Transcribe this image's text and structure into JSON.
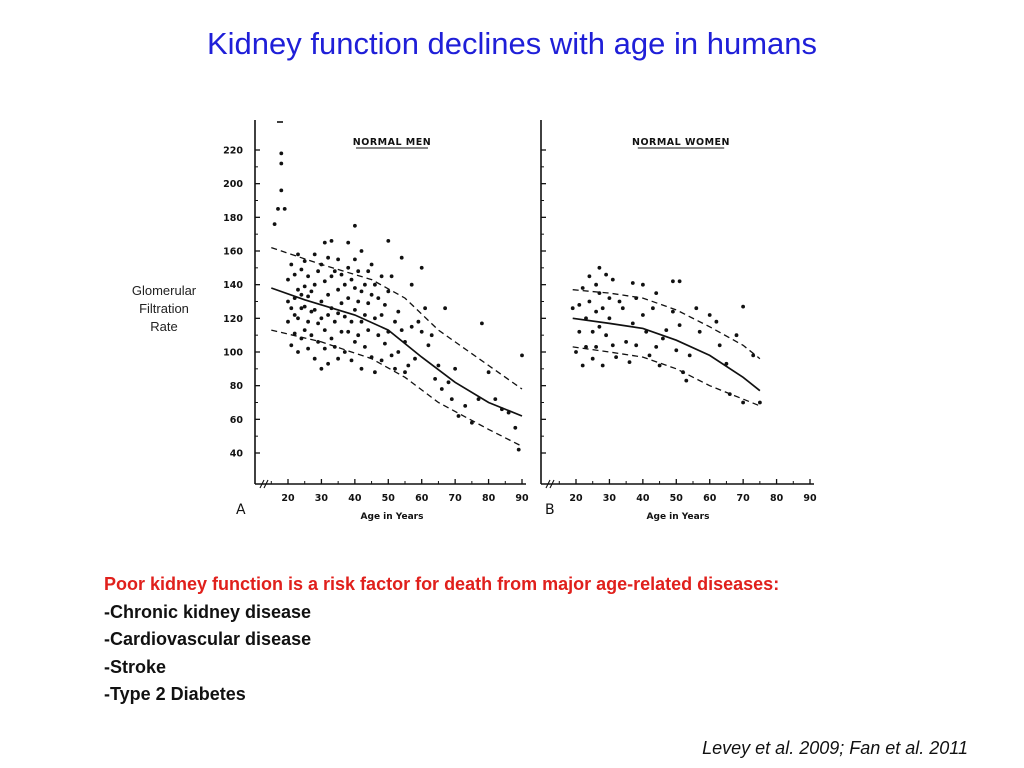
{
  "slide": {
    "title": "Kidney function declines with age in humans",
    "ylabel_lines": [
      "Glomerular",
      "Filtration",
      "Rate"
    ],
    "bullets": {
      "headline": "Poor kidney function is a risk factor for death from major age-related diseases:",
      "items": [
        "-Chronic kidney disease",
        "-Cardiovascular disease",
        "-Stroke",
        "-Type 2 Diabetes"
      ]
    },
    "citation": "Levey et al. 2009; Fan et al. 2011"
  },
  "chart_data": [
    {
      "type": "scatter",
      "panel_label": "A",
      "title": "NORMAL MEN",
      "xlabel": "Age in Years",
      "ylabel": "",
      "xlim": [
        15,
        90
      ],
      "ylim": [
        40,
        225
      ],
      "x_ticks": [
        20,
        30,
        40,
        50,
        60,
        70,
        80,
        90
      ],
      "y_ticks": [
        40,
        60,
        80,
        100,
        120,
        140,
        160,
        180,
        200,
        220
      ],
      "series": [
        {
          "kind": "points",
          "points": [
            [
              16,
              176
            ],
            [
              17,
              185
            ],
            [
              18,
              196
            ],
            [
              18,
              212
            ],
            [
              18,
              218
            ],
            [
              19,
              185
            ],
            [
              20,
              143
            ],
            [
              20,
              130
            ],
            [
              20,
              118
            ],
            [
              21,
              152
            ],
            [
              21,
              126
            ],
            [
              21,
              104
            ],
            [
              22,
              146
            ],
            [
              22,
              132
            ],
            [
              22,
              122
            ],
            [
              22,
              111
            ],
            [
              23,
              158
            ],
            [
              23,
              137
            ],
            [
              23,
              120
            ],
            [
              23,
              100
            ],
            [
              24,
              149
            ],
            [
              24,
              134
            ],
            [
              24,
              126
            ],
            [
              24,
              108
            ],
            [
              25,
              154
            ],
            [
              25,
              139
            ],
            [
              25,
              127
            ],
            [
              25,
              113
            ],
            [
              26,
              145
            ],
            [
              26,
              133
            ],
            [
              26,
              118
            ],
            [
              26,
              102
            ],
            [
              27,
              136
            ],
            [
              27,
              124
            ],
            [
              27,
              110
            ],
            [
              28,
              158
            ],
            [
              28,
              140
            ],
            [
              28,
              125
            ],
            [
              28,
              96
            ],
            [
              29,
              148
            ],
            [
              29,
              117
            ],
            [
              29,
              106
            ],
            [
              30,
              152
            ],
            [
              30,
              130
            ],
            [
              30,
              120
            ],
            [
              30,
              90
            ],
            [
              31,
              165
            ],
            [
              31,
              142
            ],
            [
              31,
              113
            ],
            [
              31,
              102
            ],
            [
              32,
              156
            ],
            [
              32,
              134
            ],
            [
              32,
              122
            ],
            [
              32,
              93
            ],
            [
              33,
              166
            ],
            [
              33,
              145
            ],
            [
              33,
              126
            ],
            [
              33,
              108
            ],
            [
              34,
              148
            ],
            [
              34,
              118
            ],
            [
              34,
              103
            ],
            [
              35,
              155
            ],
            [
              35,
              137
            ],
            [
              35,
              123
            ],
            [
              35,
              96
            ],
            [
              36,
              146
            ],
            [
              36,
              129
            ],
            [
              36,
              112
            ],
            [
              37,
              140
            ],
            [
              37,
              121
            ],
            [
              37,
              100
            ],
            [
              38,
              165
            ],
            [
              38,
              150
            ],
            [
              38,
              132
            ],
            [
              38,
              112
            ],
            [
              39,
              143
            ],
            [
              39,
              118
            ],
            [
              39,
              95
            ],
            [
              40,
              175
            ],
            [
              40,
              155
            ],
            [
              40,
              138
            ],
            [
              40,
              125
            ],
            [
              40,
              106
            ],
            [
              41,
              148
            ],
            [
              41,
              130
            ],
            [
              41,
              110
            ],
            [
              42,
              160
            ],
            [
              42,
              136
            ],
            [
              42,
              118
            ],
            [
              42,
              90
            ],
            [
              43,
              140
            ],
            [
              43,
              122
            ],
            [
              43,
              103
            ],
            [
              44,
              148
            ],
            [
              44,
              129
            ],
            [
              44,
              113
            ],
            [
              45,
              152
            ],
            [
              45,
              134
            ],
            [
              45,
              97
            ],
            [
              46,
              140
            ],
            [
              46,
              120
            ],
            [
              46,
              88
            ],
            [
              47,
              132
            ],
            [
              47,
              110
            ],
            [
              48,
              145
            ],
            [
              48,
              122
            ],
            [
              48,
              95
            ],
            [
              49,
              128
            ],
            [
              49,
              105
            ],
            [
              50,
              166
            ],
            [
              50,
              136
            ],
            [
              50,
              112
            ],
            [
              51,
              145
            ],
            [
              51,
              98
            ],
            [
              52,
              118
            ],
            [
              52,
              90
            ],
            [
              53,
              124
            ],
            [
              53,
              100
            ],
            [
              54,
              156
            ],
            [
              54,
              113
            ],
            [
              55,
              106
            ],
            [
              55,
              88
            ],
            [
              56,
              92
            ],
            [
              57,
              140
            ],
            [
              57,
              115
            ],
            [
              58,
              96
            ],
            [
              59,
              118
            ],
            [
              60,
              150
            ],
            [
              60,
              112
            ],
            [
              61,
              126
            ],
            [
              62,
              104
            ],
            [
              63,
              110
            ],
            [
              64,
              84
            ],
            [
              65,
              92
            ],
            [
              66,
              78
            ],
            [
              67,
              126
            ],
            [
              68,
              82
            ],
            [
              69,
              72
            ],
            [
              70,
              90
            ],
            [
              71,
              62
            ],
            [
              73,
              68
            ],
            [
              75,
              58
            ],
            [
              77,
              72
            ],
            [
              78,
              117
            ],
            [
              80,
              88
            ],
            [
              82,
              72
            ],
            [
              84,
              66
            ],
            [
              86,
              64
            ],
            [
              88,
              55
            ],
            [
              89,
              42
            ],
            [
              90,
              98
            ]
          ]
        },
        {
          "kind": "solid",
          "name": "",
          "points": [
            [
              15,
              138
            ],
            [
              25,
              131
            ],
            [
              40,
              122
            ],
            [
              50,
              113
            ],
            [
              60,
              97
            ],
            [
              70,
              82
            ],
            [
              80,
              70
            ],
            [
              90,
              62
            ]
          ]
        },
        {
          "kind": "dashed",
          "name": "",
          "points": [
            [
              15,
              162
            ],
            [
              30,
              152
            ],
            [
              45,
              143
            ],
            [
              55,
              132
            ],
            [
              65,
              113
            ],
            [
              80,
              92
            ],
            [
              90,
              78
            ]
          ]
        },
        {
          "kind": "dashed",
          "name": "",
          "points": [
            [
              15,
              113
            ],
            [
              30,
              106
            ],
            [
              45,
              96
            ],
            [
              55,
              85
            ],
            [
              65,
              70
            ],
            [
              80,
              54
            ],
            [
              90,
              44
            ]
          ]
        }
      ]
    },
    {
      "type": "scatter",
      "panel_label": "B",
      "title": "NORMAL WOMEN",
      "xlabel": "Age in Years",
      "ylabel": "",
      "xlim": [
        15,
        90
      ],
      "ylim": [
        40,
        225
      ],
      "x_ticks": [
        20,
        30,
        40,
        50,
        60,
        70,
        80,
        90
      ],
      "y_ticks": [
        40,
        60,
        80,
        100,
        120,
        140,
        160,
        180,
        200,
        220
      ],
      "series": [
        {
          "kind": "points",
          "points": [
            [
              19,
              126
            ],
            [
              20,
              100
            ],
            [
              21,
              128
            ],
            [
              21,
              112
            ],
            [
              22,
              138
            ],
            [
              22,
              92
            ],
            [
              23,
              120
            ],
            [
              23,
              103
            ],
            [
              24,
              145
            ],
            [
              24,
              130
            ],
            [
              25,
              96
            ],
            [
              25,
              112
            ],
            [
              26,
              140
            ],
            [
              26,
              124
            ],
            [
              26,
              103
            ],
            [
              27,
              150
            ],
            [
              27,
              135
            ],
            [
              27,
              115
            ],
            [
              28,
              92
            ],
            [
              28,
              126
            ],
            [
              29,
              146
            ],
            [
              29,
              110
            ],
            [
              30,
              120
            ],
            [
              30,
              132
            ],
            [
              31,
              104
            ],
            [
              31,
              143
            ],
            [
              32,
              97
            ],
            [
              33,
              130
            ],
            [
              34,
              126
            ],
            [
              35,
              106
            ],
            [
              36,
              94
            ],
            [
              37,
              141
            ],
            [
              37,
              117
            ],
            [
              38,
              132
            ],
            [
              38,
              104
            ],
            [
              40,
              122
            ],
            [
              40,
              140
            ],
            [
              41,
              112
            ],
            [
              42,
              98
            ],
            [
              43,
              126
            ],
            [
              44,
              135
            ],
            [
              44,
              103
            ],
            [
              45,
              92
            ],
            [
              46,
              108
            ],
            [
              47,
              113
            ],
            [
              49,
              124
            ],
            [
              49,
              142
            ],
            [
              50,
              101
            ],
            [
              51,
              116
            ],
            [
              51,
              142
            ],
            [
              52,
              88
            ],
            [
              53,
              83
            ],
            [
              54,
              98
            ],
            [
              56,
              126
            ],
            [
              57,
              112
            ],
            [
              60,
              122
            ],
            [
              62,
              118
            ],
            [
              63,
              104
            ],
            [
              65,
              93
            ],
            [
              66,
              75
            ],
            [
              68,
              110
            ],
            [
              70,
              127
            ],
            [
              70,
              70
            ],
            [
              73,
              98
            ],
            [
              75,
              70
            ]
          ]
        },
        {
          "kind": "solid",
          "name": "",
          "points": [
            [
              19,
              120
            ],
            [
              30,
              117
            ],
            [
              40,
              114
            ],
            [
              50,
              107
            ],
            [
              60,
              98
            ],
            [
              70,
              85
            ],
            [
              75,
              77
            ]
          ]
        },
        {
          "kind": "dashed",
          "name": "",
          "points": [
            [
              19,
              137
            ],
            [
              30,
              135
            ],
            [
              40,
              132
            ],
            [
              50,
              125
            ],
            [
              60,
              115
            ],
            [
              70,
              104
            ],
            [
              75,
              96
            ]
          ]
        },
        {
          "kind": "dashed",
          "name": "",
          "points": [
            [
              19,
              103
            ],
            [
              30,
              100
            ],
            [
              40,
              97
            ],
            [
              50,
              90
            ],
            [
              60,
              80
            ],
            [
              70,
              72
            ],
            [
              75,
              68
            ]
          ]
        }
      ]
    }
  ]
}
